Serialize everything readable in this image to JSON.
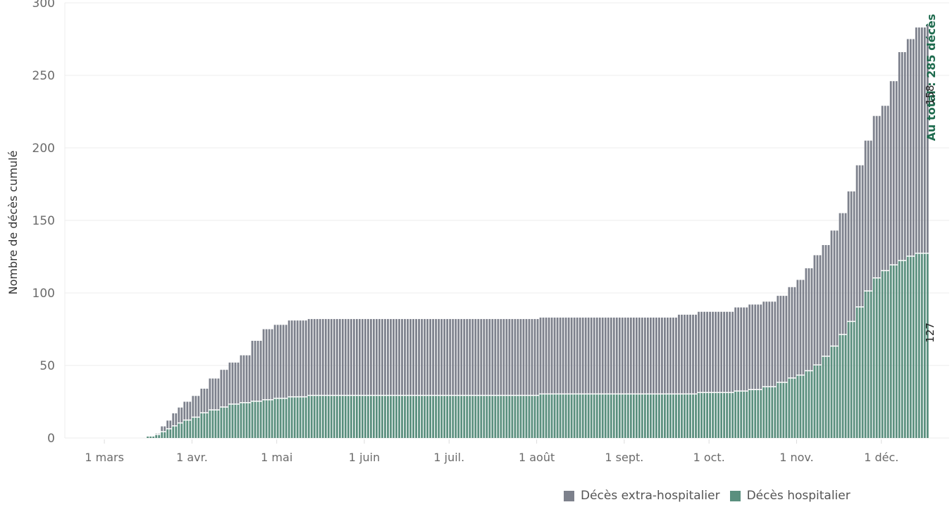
{
  "chart_data": {
    "type": "bar",
    "stacked": true,
    "ylabel": "Nombre de décès cumulé",
    "ylim": [
      0,
      300
    ],
    "y_ticks": [
      "0",
      "50",
      "100",
      "150",
      "200",
      "250",
      "300"
    ],
    "x_range": [
      "2020-02-16",
      "2020-12-25"
    ],
    "x_ticks": [
      {
        "date": "2020-03-01",
        "label": "1 mars"
      },
      {
        "date": "2020-04-01",
        "label": "1 avr."
      },
      {
        "date": "2020-05-01",
        "label": "1 mai"
      },
      {
        "date": "2020-06-01",
        "label": "1 juin"
      },
      {
        "date": "2020-07-01",
        "label": "1 juil."
      },
      {
        "date": "2020-08-01",
        "label": "1 août"
      },
      {
        "date": "2020-09-01",
        "label": "1 sept."
      },
      {
        "date": "2020-10-01",
        "label": "1 oct."
      },
      {
        "date": "2020-11-01",
        "label": "1 nov."
      },
      {
        "date": "2020-12-01",
        "label": "1 déc."
      }
    ],
    "total_label": "Au total : 285 décès",
    "end_labels": {
      "hospital": "127",
      "extra": "158"
    },
    "grid": true,
    "legend_position": "bottom-right",
    "series": [
      {
        "name": "Décès hospitalier",
        "color": "#5a8f7e",
        "points": [
          [
            "2020-03-16",
            1
          ],
          [
            "2020-03-19",
            2
          ],
          [
            "2020-03-21",
            4
          ],
          [
            "2020-03-23",
            6
          ],
          [
            "2020-03-25",
            8
          ],
          [
            "2020-03-27",
            10
          ],
          [
            "2020-03-29",
            12
          ],
          [
            "2020-04-01",
            14
          ],
          [
            "2020-04-04",
            17
          ],
          [
            "2020-04-07",
            19
          ],
          [
            "2020-04-11",
            21
          ],
          [
            "2020-04-14",
            23
          ],
          [
            "2020-04-18",
            24
          ],
          [
            "2020-04-22",
            25
          ],
          [
            "2020-04-26",
            26
          ],
          [
            "2020-04-30",
            27
          ],
          [
            "2020-05-05",
            28
          ],
          [
            "2020-05-12",
            29
          ],
          [
            "2020-07-31",
            29
          ],
          [
            "2020-08-02",
            30
          ],
          [
            "2020-09-20",
            30
          ],
          [
            "2020-09-27",
            31
          ],
          [
            "2020-10-10",
            32
          ],
          [
            "2020-10-15",
            33
          ],
          [
            "2020-10-20",
            35
          ],
          [
            "2020-10-25",
            38
          ],
          [
            "2020-10-29",
            41
          ],
          [
            "2020-11-01",
            43
          ],
          [
            "2020-11-04",
            46
          ],
          [
            "2020-11-07",
            50
          ],
          [
            "2020-11-10",
            56
          ],
          [
            "2020-11-13",
            63
          ],
          [
            "2020-11-16",
            71
          ],
          [
            "2020-11-19",
            80
          ],
          [
            "2020-11-22",
            90
          ],
          [
            "2020-11-25",
            101
          ],
          [
            "2020-11-28",
            110
          ],
          [
            "2020-12-01",
            115
          ],
          [
            "2020-12-04",
            119
          ],
          [
            "2020-12-07",
            122
          ],
          [
            "2020-12-10",
            125
          ],
          [
            "2020-12-13",
            127
          ],
          [
            "2020-12-17",
            127
          ]
        ]
      },
      {
        "name": "Décès extra-hospitalier",
        "color": "#7d818c",
        "points": [
          [
            "2020-03-16",
            0
          ],
          [
            "2020-03-19",
            1
          ],
          [
            "2020-03-21",
            4
          ],
          [
            "2020-03-23",
            6
          ],
          [
            "2020-03-25",
            9
          ],
          [
            "2020-03-27",
            11
          ],
          [
            "2020-03-29",
            13
          ],
          [
            "2020-04-01",
            15
          ],
          [
            "2020-04-04",
            17
          ],
          [
            "2020-04-07",
            22
          ],
          [
            "2020-04-11",
            26
          ],
          [
            "2020-04-14",
            29
          ],
          [
            "2020-04-18",
            33
          ],
          [
            "2020-04-22",
            42
          ],
          [
            "2020-04-26",
            49
          ],
          [
            "2020-04-30",
            51
          ],
          [
            "2020-05-05",
            53
          ],
          [
            "2020-05-12",
            53
          ],
          [
            "2020-07-31",
            53
          ],
          [
            "2020-08-02",
            53
          ],
          [
            "2020-09-01",
            53
          ],
          [
            "2020-09-20",
            55
          ],
          [
            "2020-09-27",
            56
          ],
          [
            "2020-10-10",
            58
          ],
          [
            "2020-10-15",
            59
          ],
          [
            "2020-10-20",
            59
          ],
          [
            "2020-10-25",
            60
          ],
          [
            "2020-10-29",
            63
          ],
          [
            "2020-11-01",
            66
          ],
          [
            "2020-11-04",
            71
          ],
          [
            "2020-11-07",
            76
          ],
          [
            "2020-11-10",
            77
          ],
          [
            "2020-11-13",
            80
          ],
          [
            "2020-11-16",
            84
          ],
          [
            "2020-11-19",
            90
          ],
          [
            "2020-11-22",
            98
          ],
          [
            "2020-11-25",
            104
          ],
          [
            "2020-11-28",
            112
          ],
          [
            "2020-12-01",
            114
          ],
          [
            "2020-12-04",
            127
          ],
          [
            "2020-12-07",
            144
          ],
          [
            "2020-12-10",
            150
          ],
          [
            "2020-12-13",
            156
          ],
          [
            "2020-12-17",
            158
          ]
        ]
      }
    ]
  },
  "legend": [
    {
      "label": "Décès extra-hospitalier",
      "color": "#7d818c"
    },
    {
      "label": "Décès hospitalier",
      "color": "#5a8f7e"
    }
  ],
  "colors": {
    "total_text": "#1e6b4e",
    "grid": "#ececec",
    "axis": "#dddddd"
  }
}
